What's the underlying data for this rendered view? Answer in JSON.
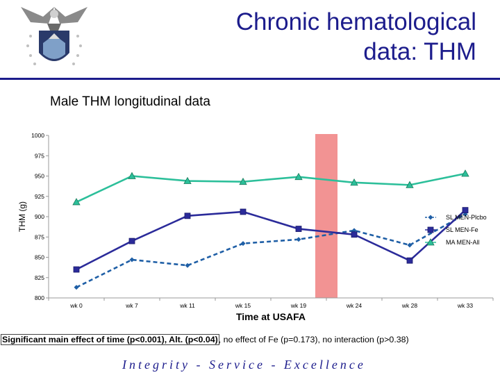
{
  "header": {
    "title_line1": "Chronic hematological",
    "title_line2": "data: THM"
  },
  "subtitle": "Male THM longitudinal data",
  "footer": {
    "note_bold": "Significant main effect of time (p<0.001), Alt. (p<0.04)",
    "note_rest": ", no effect of Fe (p=0.173), no interaction (p>0.38)",
    "motto": "Integrity - Service - Excellence"
  },
  "colors": {
    "title": "#1c1c8c",
    "sl_placebo": "#1f5fa6",
    "sl_fe": "#2b2b9a",
    "ma_all": "#2cbf9a",
    "highlight": "#f08080"
  },
  "chart_data": {
    "type": "line",
    "xlabel": "Time at USAFA",
    "ylabel": "THM (g)",
    "categories": [
      "wk 0",
      "wk 7",
      "wk 11",
      "wk 15",
      "wk 19",
      "wk 24",
      "wk 28",
      "wk 33"
    ],
    "ylim": [
      800,
      1000
    ],
    "yticks": [
      800,
      825,
      850,
      875,
      900,
      925,
      950,
      975,
      1000
    ],
    "grid": false,
    "legend_position": "right",
    "highlight_band": [
      "wk 19",
      "wk 24"
    ],
    "series": [
      {
        "name": "SL MEN-Plcbo",
        "marker": "diamond",
        "dashed": true,
        "values": [
          813,
          847,
          840,
          867,
          872,
          883,
          865,
          903
        ]
      },
      {
        "name": "SL MEN-Fe",
        "marker": "square",
        "dashed": false,
        "values": [
          835,
          870,
          901,
          906,
          885,
          878,
          846,
          908
        ]
      },
      {
        "name": "MA MEN-All",
        "marker": "triangle",
        "dashed": false,
        "values": [
          918,
          950,
          944,
          943,
          949,
          942,
          939,
          953
        ]
      }
    ]
  }
}
